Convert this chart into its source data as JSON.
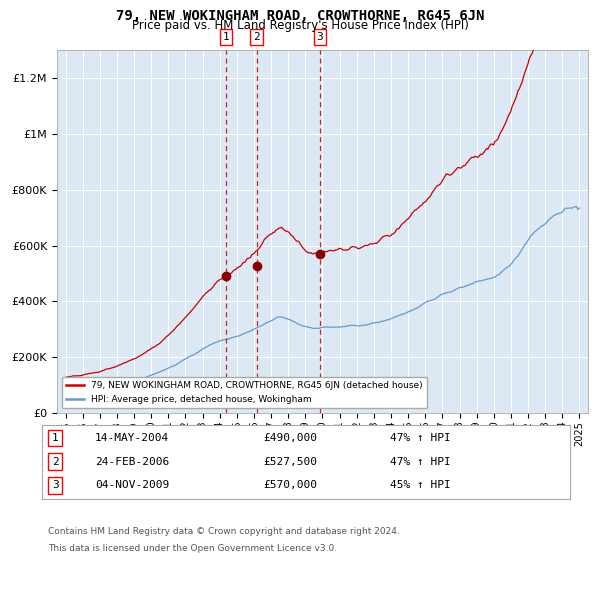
{
  "title": "79, NEW WOKINGHAM ROAD, CROWTHORNE, RG45 6JN",
  "subtitle": "Price paid vs. HM Land Registry's House Price Index (HPI)",
  "title_fontsize": 10,
  "subtitle_fontsize": 8.5,
  "plot_bg_color": "#dce9f5",
  "red_line_color": "#cc0000",
  "blue_line_color": "#6699cc",
  "marker_color": "#880000",
  "vline_color": "#cc0000",
  "grid_color": "#ffffff",
  "legend_border_color": "#aaaaaa",
  "transactions": [
    {
      "num": 1,
      "date": "14-MAY-2004",
      "price": 490000,
      "year": 2004.37,
      "hpi_pct": "47% ↑ HPI"
    },
    {
      "num": 2,
      "date": "24-FEB-2006",
      "price": 527500,
      "year": 2006.15,
      "hpi_pct": "47% ↑ HPI"
    },
    {
      "num": 3,
      "date": "04-NOV-2009",
      "price": 570000,
      "year": 2009.84,
      "hpi_pct": "45% ↑ HPI"
    }
  ],
  "ylim": [
    0,
    1300000
  ],
  "yticks": [
    0,
    200000,
    400000,
    600000,
    800000,
    1000000,
    1200000
  ],
  "ytick_labels": [
    "£0",
    "£200K",
    "£400K",
    "£600K",
    "£800K",
    "£1M",
    "£1.2M"
  ],
  "xlim_start": 1994.5,
  "xlim_end": 2025.5,
  "xticks": [
    1995,
    1996,
    1997,
    1998,
    1999,
    2000,
    2001,
    2002,
    2003,
    2004,
    2005,
    2006,
    2007,
    2008,
    2009,
    2010,
    2011,
    2012,
    2013,
    2014,
    2015,
    2016,
    2017,
    2018,
    2019,
    2020,
    2021,
    2022,
    2023,
    2024,
    2025
  ],
  "legend_line1": "79, NEW WOKINGHAM ROAD, CROWTHORNE, RG45 6JN (detached house)",
  "legend_line2": "HPI: Average price, detached house, Wokingham",
  "footnote1": "Contains HM Land Registry data © Crown copyright and database right 2024.",
  "footnote2": "This data is licensed under the Open Government Licence v3.0."
}
